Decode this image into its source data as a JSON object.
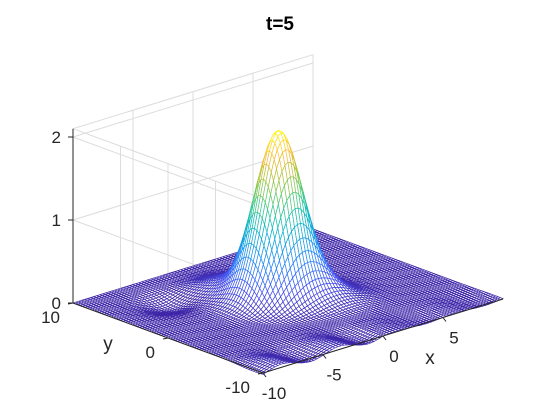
{
  "chart_data": {
    "type": "surface",
    "title": "t=5",
    "xlabel": "x",
    "ylabel": "y",
    "zlabel": "",
    "xlim": [
      -10,
      10
    ],
    "ylim": [
      -10,
      10
    ],
    "zlim": [
      0,
      2.1
    ],
    "xticks": [
      -10,
      -5,
      0,
      5
    ],
    "yticks": [
      -10,
      0,
      10
    ],
    "zticks": [
      0,
      1,
      2
    ],
    "xtick_labels": [
      "-10",
      "-5",
      "0",
      "5"
    ],
    "ytick_labels": [
      "-10",
      "0",
      "10"
    ],
    "ztick_labels": [
      "0",
      "1",
      "2"
    ],
    "grid": true,
    "colormap": "parula",
    "surface": {
      "description_values": "peaked hump with small ripples in the y<0 region",
      "peak_x": 0,
      "peak_y": 1,
      "peak_z": 2.0,
      "peak_width": 1.6,
      "secondary_bumps": [
        {
          "x": -1.5,
          "y": 5,
          "z": 0.12,
          "width": 1.6
        },
        {
          "x": -5.5,
          "y": 5.5,
          "z": -0.1,
          "width": 1.3
        },
        {
          "x": 2,
          "y": -2,
          "z": 0.15,
          "width": 1.5
        }
      ],
      "grid_resolution": 81
    },
    "colors": {
      "low": "#3e26a8",
      "mid": "#13beb8",
      "high": "#f9fb15"
    }
  }
}
